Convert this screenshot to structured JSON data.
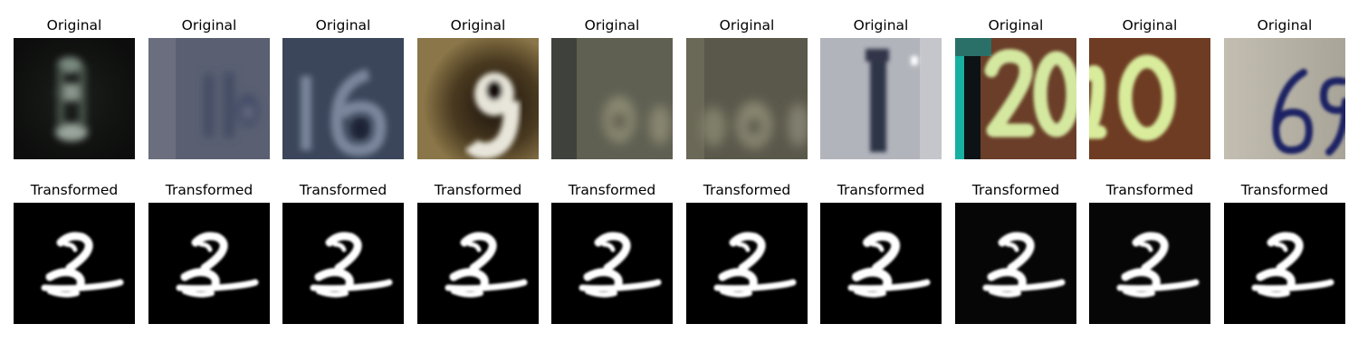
{
  "figure": {
    "top_row": {
      "panels": [
        {
          "title": "Original",
          "scene": "digit-8-dark"
        },
        {
          "title": "Original",
          "scene": "digit-16-blue"
        },
        {
          "title": "Original",
          "scene": "digit-16-blue-2"
        },
        {
          "title": "Original",
          "scene": "digit-9-brown"
        },
        {
          "title": "Original",
          "scene": "digit-blur-gray"
        },
        {
          "title": "Original",
          "scene": "digit-blur-gray-2"
        },
        {
          "title": "Original",
          "scene": "digit-1-light"
        },
        {
          "title": "Original",
          "scene": "digit-20-teal"
        },
        {
          "title": "Original",
          "scene": "digit-0-brown"
        },
        {
          "title": "Original",
          "scene": "digit-69-paper"
        }
      ]
    },
    "bottom_row": {
      "panels": [
        {
          "title": "Transformed",
          "scene": "swan-2"
        },
        {
          "title": "Transformed",
          "scene": "swan-2"
        },
        {
          "title": "Transformed",
          "scene": "swan-2"
        },
        {
          "title": "Transformed",
          "scene": "swan-2"
        },
        {
          "title": "Transformed",
          "scene": "swan-2"
        },
        {
          "title": "Transformed",
          "scene": "swan-2"
        },
        {
          "title": "Transformed",
          "scene": "swan-2"
        },
        {
          "title": "Transformed",
          "scene": "swan-2"
        },
        {
          "title": "Transformed",
          "scene": "swan-2"
        },
        {
          "title": "Transformed",
          "scene": "swan-2"
        }
      ]
    }
  }
}
